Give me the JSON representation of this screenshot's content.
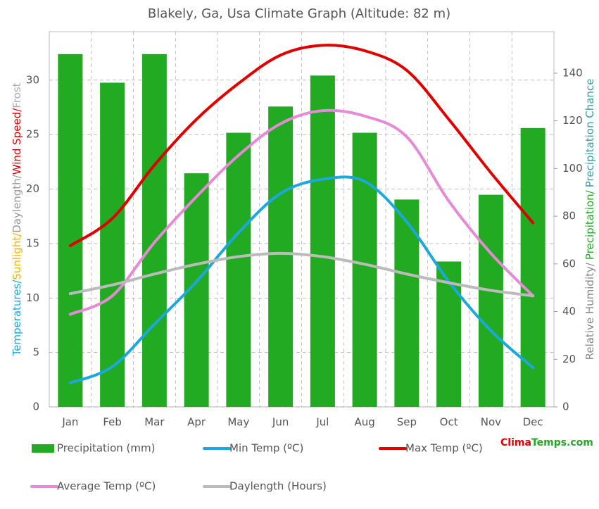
{
  "chart_data": {
    "type": "bar",
    "title": "Blakely, Ga, Usa Climate Graph (Altitude: 82 m)",
    "y_label_parts": [
      {
        "text": "Temperatures/",
        "color": "#1ca8dd"
      },
      {
        "text": "Sunlight/",
        "color": "#f0b400"
      },
      {
        "text": "Daylength/",
        "color": "#999999"
      },
      {
        "text": "Wind Speed/",
        "color": "#dd0000"
      },
      {
        "text": "Frost",
        "color": "#aaaaaa"
      }
    ],
    "y2_label_parts": [
      {
        "text": "Relative Humidity/",
        "color": "#888888"
      },
      {
        "text": "Precipitation/",
        "color": "#22aa22"
      },
      {
        "text": "Precipitation Chance",
        "color": "#3a9fa0"
      }
    ],
    "categories": [
      "Jan",
      "Feb",
      "Mar",
      "Apr",
      "May",
      "Jun",
      "Jul",
      "Aug",
      "Sep",
      "Oct",
      "Nov",
      "Dec"
    ],
    "series": [
      {
        "name": "Precipitation (mm)",
        "type": "bar",
        "axis": "y2",
        "color": "#22aa22",
        "values": [
          148,
          136,
          148,
          98,
          115,
          126,
          139,
          115,
          87,
          61,
          89,
          117
        ]
      },
      {
        "name": "Min Temp (ºC)",
        "type": "line",
        "color": "#1ca8dd",
        "values": [
          2.2,
          3.7,
          7.6,
          11.5,
          16,
          19.6,
          20.9,
          20.7,
          17,
          11.5,
          7,
          3.6
        ]
      },
      {
        "name": "Max Temp (ºC)",
        "type": "line",
        "color": "#e00000",
        "values": [
          14.8,
          17.3,
          22.2,
          26.4,
          29.7,
          32.3,
          33.2,
          32.7,
          30.9,
          26.4,
          21.5,
          16.9
        ]
      },
      {
        "name": "Average Temp (ºC)",
        "type": "line",
        "color": "#e68ad6",
        "values": [
          8.5,
          10.2,
          15.1,
          19.3,
          23.1,
          26,
          27.2,
          26.7,
          24.8,
          18.9,
          14.1,
          10.2
        ]
      },
      {
        "name": "Daylength (Hours)",
        "type": "line",
        "color": "#bbbbbb",
        "values": [
          10.4,
          11.2,
          12.2,
          13.1,
          13.8,
          14.1,
          13.8,
          13.1,
          12.2,
          11.4,
          10.7,
          10.2
        ]
      }
    ],
    "ylim": [
      0,
      34.45
    ],
    "yticks": [
      0,
      5,
      10,
      15,
      20,
      25,
      30
    ],
    "y2lim": [
      0,
      157.4
    ],
    "y2ticks": [
      0,
      20,
      40,
      60,
      80,
      100,
      120,
      140
    ],
    "grid": true,
    "watermark_parts": [
      {
        "text": "Clima",
        "color": "#e00000"
      },
      {
        "text": "Temps.com",
        "color": "#22aa22"
      }
    ]
  }
}
